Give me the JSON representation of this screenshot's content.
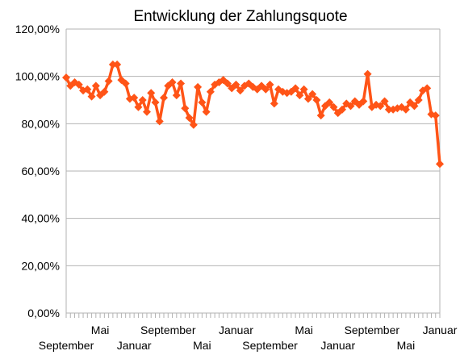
{
  "chart_data": {
    "type": "line",
    "title": "Entwicklung der Zahlungsquote",
    "xlabel": "",
    "ylabel": "",
    "ylim": [
      0,
      1.2
    ],
    "yticks": [
      "0,00%",
      "20,00%",
      "40,00%",
      "60,00%",
      "80,00%",
      "100,00%",
      "120,00%"
    ],
    "grid": true,
    "legend": "none",
    "color": "#ff5417",
    "x_tick_labels": [
      {
        "label": "September",
        "index": 0,
        "row": 2
      },
      {
        "label": "Mai",
        "index": 8,
        "row": 1
      },
      {
        "label": "Januar",
        "index": 16,
        "row": 2
      },
      {
        "label": "September",
        "index": 24,
        "row": 1
      },
      {
        "label": "Mai",
        "index": 32,
        "row": 2
      },
      {
        "label": "Januar",
        "index": 40,
        "row": 1
      },
      {
        "label": "September",
        "index": 48,
        "row": 2
      },
      {
        "label": "Mai",
        "index": 56,
        "row": 1
      },
      {
        "label": "Januar",
        "index": 64,
        "row": 2
      },
      {
        "label": "September",
        "index": 72,
        "row": 1
      },
      {
        "label": "Mai",
        "index": 80,
        "row": 2
      },
      {
        "label": "Januar",
        "index": 88,
        "row": 1
      }
    ],
    "values": [
      0.995,
      0.96,
      0.975,
      0.965,
      0.94,
      0.945,
      0.915,
      0.96,
      0.92,
      0.935,
      0.98,
      1.05,
      1.05,
      0.985,
      0.97,
      0.905,
      0.91,
      0.87,
      0.9,
      0.85,
      0.93,
      0.89,
      0.81,
      0.91,
      0.96,
      0.975,
      0.92,
      0.97,
      0.865,
      0.825,
      0.795,
      0.955,
      0.89,
      0.85,
      0.935,
      0.965,
      0.975,
      0.985,
      0.97,
      0.95,
      0.965,
      0.94,
      0.96,
      0.97,
      0.955,
      0.945,
      0.96,
      0.945,
      0.965,
      0.885,
      0.945,
      0.935,
      0.93,
      0.935,
      0.95,
      0.92,
      0.945,
      0.905,
      0.925,
      0.9,
      0.835,
      0.875,
      0.89,
      0.87,
      0.845,
      0.86,
      0.885,
      0.875,
      0.895,
      0.88,
      0.895,
      1.01,
      0.87,
      0.88,
      0.875,
      0.895,
      0.86,
      0.86,
      0.865,
      0.87,
      0.86,
      0.89,
      0.875,
      0.9,
      0.94,
      0.95,
      0.84,
      0.835,
      0.63
    ]
  }
}
